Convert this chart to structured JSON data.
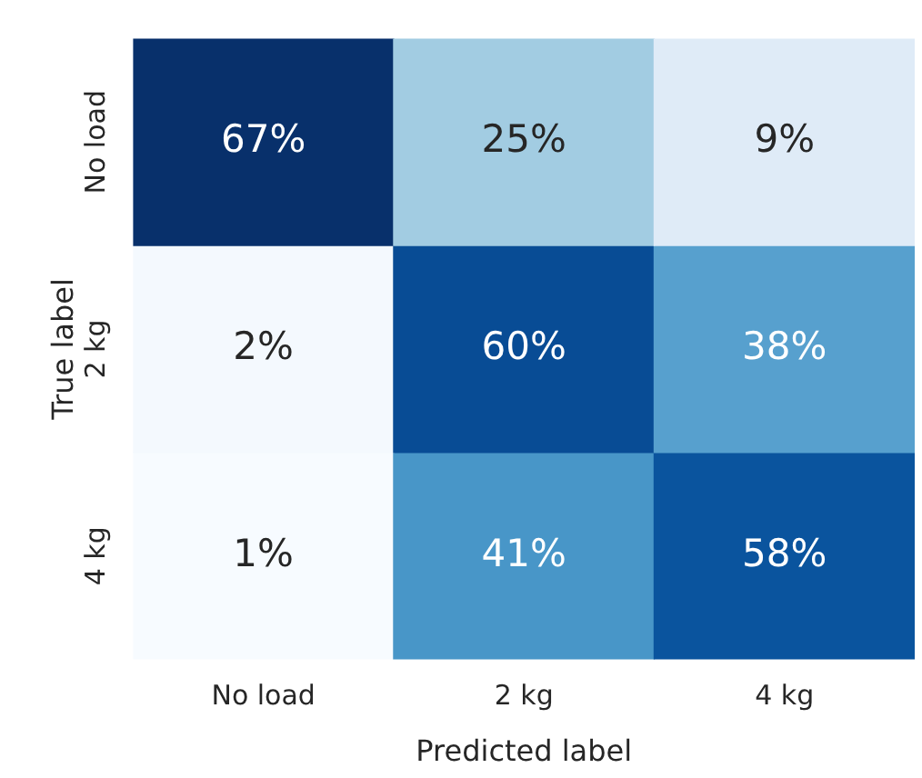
{
  "chart_data": {
    "type": "heatmap",
    "xlabel": "Predicted label",
    "ylabel": "True label",
    "categories": [
      "No load",
      "2 kg",
      "4 kg"
    ],
    "y_categories": [
      "No load",
      "2 kg",
      "4 kg"
    ],
    "cells": [
      [
        67,
        25,
        9
      ],
      [
        2,
        60,
        38
      ],
      [
        1,
        41,
        58
      ]
    ],
    "cell_labels": [
      [
        "67%",
        "25%",
        "9%"
      ],
      [
        "2%",
        "60%",
        "38%"
      ],
      [
        "1%",
        "41%",
        "58%"
      ]
    ],
    "grid": false,
    "legend": false
  }
}
